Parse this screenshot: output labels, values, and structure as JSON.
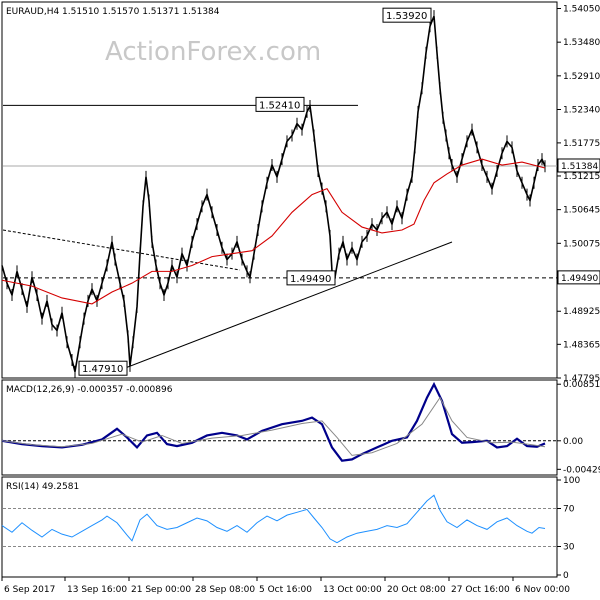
{
  "watermark": "ActionForex.com",
  "chart_data": [
    {
      "type": "candlestick",
      "symbol_header": "EURAUD,H4  1.51510 1.51570 1.51371 1.51384",
      "ylim": [
        1.47795,
        1.5416
      ],
      "y_ticks": [
        "1.54050",
        "1.53480",
        "1.52910",
        "1.52340",
        "1.51775",
        "1.51215",
        "1.50645",
        "1.50075",
        "1.49490",
        "1.48925",
        "1.48365",
        "1.47795"
      ],
      "current_price": "1.51384",
      "annotations": [
        "1.53920",
        "1.52410",
        "1.49490",
        "1.47910"
      ],
      "level_line": {
        "label": "1.49490",
        "value": 1.4949
      },
      "resistance_line": {
        "label": "1.52410",
        "value": 1.5241
      },
      "price_series": [
        [
          0,
          1.497
        ],
        [
          5,
          1.494
        ],
        [
          10,
          1.492
        ],
        [
          15,
          1.496
        ],
        [
          20,
          1.493
        ],
        [
          25,
          1.49
        ],
        [
          30,
          1.495
        ],
        [
          35,
          1.492
        ],
        [
          40,
          1.488
        ],
        [
          45,
          1.491
        ],
        [
          50,
          1.487
        ],
        [
          55,
          1.486
        ],
        [
          60,
          1.489
        ],
        [
          65,
          1.484
        ],
        [
          70,
          1.481
        ],
        [
          73,
          1.479
        ],
        [
          78,
          1.484
        ],
        [
          82,
          1.488
        ],
        [
          86,
          1.491
        ],
        [
          90,
          1.493
        ],
        [
          95,
          1.491
        ],
        [
          100,
          1.494
        ],
        [
          105,
          1.497
        ],
        [
          110,
          1.501
        ],
        [
          113,
          1.498
        ],
        [
          118,
          1.494
        ],
        [
          122,
          1.491
        ],
        [
          126,
          1.485
        ],
        [
          128,
          1.48
        ],
        [
          131,
          1.484
        ],
        [
          135,
          1.49
        ],
        [
          138,
          1.499
        ],
        [
          141,
          1.507
        ],
        [
          144,
          1.512
        ],
        [
          147,
          1.508
        ],
        [
          150,
          1.501
        ],
        [
          154,
          1.497
        ],
        [
          158,
          1.494
        ],
        [
          162,
          1.492
        ],
        [
          166,
          1.494
        ],
        [
          170,
          1.497
        ],
        [
          175,
          1.495
        ],
        [
          180,
          1.499
        ],
        [
          185,
          1.497
        ],
        [
          190,
          1.501
        ],
        [
          195,
          1.504
        ],
        [
          200,
          1.507
        ],
        [
          205,
          1.509
        ],
        [
          210,
          1.506
        ],
        [
          215,
          1.503
        ],
        [
          220,
          1.5
        ],
        [
          225,
          1.498
        ],
        [
          230,
          1.499
        ],
        [
          235,
          1.501
        ],
        [
          240,
          1.498
        ],
        [
          245,
          1.496
        ],
        [
          248,
          1.495
        ],
        [
          252,
          1.499
        ],
        [
          256,
          1.503
        ],
        [
          260,
          1.507
        ],
        [
          265,
          1.511
        ],
        [
          270,
          1.514
        ],
        [
          275,
          1.512
        ],
        [
          280,
          1.515
        ],
        [
          285,
          1.518
        ],
        [
          290,
          1.519
        ],
        [
          295,
          1.521
        ],
        [
          300,
          1.52
        ],
        [
          305,
          1.523
        ],
        [
          308,
          1.524
        ],
        [
          312,
          1.519
        ],
        [
          316,
          1.513
        ],
        [
          320,
          1.51
        ],
        [
          324,
          1.507
        ],
        [
          328,
          1.502
        ],
        [
          330,
          1.496
        ],
        [
          333,
          1.495
        ],
        [
          337,
          1.499
        ],
        [
          341,
          1.501
        ],
        [
          345,
          1.498
        ],
        [
          350,
          1.5
        ],
        [
          355,
          1.498
        ],
        [
          360,
          1.501
        ],
        [
          365,
          1.502
        ],
        [
          370,
          1.504
        ],
        [
          375,
          1.503
        ],
        [
          380,
          1.505
        ],
        [
          385,
          1.506
        ],
        [
          390,
          1.504
        ],
        [
          395,
          1.507
        ],
        [
          400,
          1.505
        ],
        [
          405,
          1.509
        ],
        [
          410,
          1.512
        ],
        [
          413,
          1.517
        ],
        [
          416,
          1.523
        ],
        [
          420,
          1.527
        ],
        [
          424,
          1.533
        ],
        [
          428,
          1.5375
        ],
        [
          432,
          1.5392
        ],
        [
          435,
          1.533
        ],
        [
          438,
          1.527
        ],
        [
          441,
          1.522
        ],
        [
          444,
          1.519
        ],
        [
          447,
          1.516
        ],
        [
          450,
          1.514
        ],
        [
          455,
          1.512
        ],
        [
          460,
          1.515
        ],
        [
          465,
          1.518
        ],
        [
          470,
          1.52
        ],
        [
          475,
          1.517
        ],
        [
          480,
          1.514
        ],
        [
          485,
          1.512
        ],
        [
          490,
          1.51
        ],
        [
          495,
          1.513
        ],
        [
          500,
          1.516
        ],
        [
          505,
          1.518
        ],
        [
          510,
          1.517
        ],
        [
          515,
          1.513
        ],
        [
          520,
          1.511
        ],
        [
          525,
          1.509
        ],
        [
          528,
          1.508
        ],
        [
          532,
          1.511
        ],
        [
          536,
          1.514
        ],
        [
          540,
          1.515
        ],
        [
          543,
          1.5138
        ]
      ],
      "ma_series": [
        [
          0,
          1.4945
        ],
        [
          30,
          1.4935
        ],
        [
          60,
          1.4915
        ],
        [
          90,
          1.4905
        ],
        [
          110,
          1.4925
        ],
        [
          130,
          1.494
        ],
        [
          150,
          1.496
        ],
        [
          170,
          1.496
        ],
        [
          190,
          1.497
        ],
        [
          210,
          1.4985
        ],
        [
          230,
          1.499
        ],
        [
          250,
          1.4995
        ],
        [
          270,
          1.502
        ],
        [
          290,
          1.506
        ],
        [
          310,
          1.509
        ],
        [
          325,
          1.51
        ],
        [
          340,
          1.506
        ],
        [
          360,
          1.5035
        ],
        [
          380,
          1.5025
        ],
        [
          400,
          1.503
        ],
        [
          412,
          1.504
        ],
        [
          422,
          1.508
        ],
        [
          432,
          1.511
        ],
        [
          445,
          1.5125
        ],
        [
          460,
          1.514
        ],
        [
          480,
          1.515
        ],
        [
          500,
          1.514
        ],
        [
          520,
          1.5145
        ],
        [
          543,
          1.5135
        ]
      ]
    },
    {
      "type": "line",
      "title": "MACD(12,26,9) -0.000357 -0.000896",
      "ylim": [
        -0.005,
        0.009
      ],
      "y_ticks": [
        "0.008517",
        "0.00",
        "-0.004296"
      ],
      "zero_line": 0,
      "series": [
        {
          "name": "MACD",
          "color": "#00008b",
          "values": [
            [
              0,
              0.0
            ],
            [
              20,
              -0.0005
            ],
            [
              40,
              -0.0008
            ],
            [
              60,
              -0.001
            ],
            [
              80,
              -0.0006
            ],
            [
              100,
              0.0002
            ],
            [
              115,
              0.0018
            ],
            [
              125,
              0.0005
            ],
            [
              135,
              -0.001
            ],
            [
              145,
              0.0008
            ],
            [
              155,
              0.0012
            ],
            [
              165,
              -0.0005
            ],
            [
              175,
              -0.0008
            ],
            [
              190,
              -0.0003
            ],
            [
              205,
              0.0008
            ],
            [
              220,
              0.0012
            ],
            [
              235,
              0.0008
            ],
            [
              245,
              0.0002
            ],
            [
              260,
              0.0015
            ],
            [
              280,
              0.0025
            ],
            [
              300,
              0.003
            ],
            [
              310,
              0.0035
            ],
            [
              320,
              0.0025
            ],
            [
              330,
              -0.001
            ],
            [
              340,
              -0.003
            ],
            [
              350,
              -0.0028
            ],
            [
              360,
              -0.002
            ],
            [
              375,
              -0.001
            ],
            [
              390,
              0.0
            ],
            [
              405,
              0.0005
            ],
            [
              415,
              0.003
            ],
            [
              425,
              0.0065
            ],
            [
              432,
              0.0085
            ],
            [
              440,
              0.006
            ],
            [
              450,
              0.001
            ],
            [
              460,
              -0.0003
            ],
            [
              470,
              -0.0002
            ],
            [
              485,
              0.0
            ],
            [
              495,
              -0.001
            ],
            [
              505,
              -0.0008
            ],
            [
              515,
              0.0003
            ],
            [
              525,
              -0.0008
            ],
            [
              535,
              -0.0009
            ],
            [
              543,
              -0.0004
            ]
          ]
        },
        {
          "name": "Signal",
          "color": "#888888",
          "values": [
            [
              0,
              0.0
            ],
            [
              30,
              -0.0006
            ],
            [
              60,
              -0.0009
            ],
            [
              90,
              -0.0004
            ],
            [
              120,
              0.001
            ],
            [
              140,
              -0.0002
            ],
            [
              160,
              0.0008
            ],
            [
              180,
              -0.0004
            ],
            [
              210,
              0.0004
            ],
            [
              240,
              0.0008
            ],
            [
              270,
              0.0016
            ],
            [
              300,
              0.0026
            ],
            [
              320,
              0.003
            ],
            [
              335,
              0.0005
            ],
            [
              350,
              -0.0022
            ],
            [
              370,
              -0.0018
            ],
            [
              395,
              -0.0004
            ],
            [
              420,
              0.0025
            ],
            [
              438,
              0.0065
            ],
            [
              450,
              0.003
            ],
            [
              465,
              0.0005
            ],
            [
              490,
              -0.0003
            ],
            [
              510,
              -0.0002
            ],
            [
              530,
              -0.0006
            ],
            [
              543,
              -0.0009
            ]
          ]
        }
      ]
    },
    {
      "type": "line",
      "title": "RSI(14) 49.2581",
      "ylim": [
        0,
        100
      ],
      "y_ticks": [
        "100",
        "70",
        "30",
        "0"
      ],
      "levels": [
        70,
        30
      ],
      "series": [
        {
          "name": "RSI",
          "color": "#1e90ff",
          "values": [
            [
              0,
              52
            ],
            [
              10,
              45
            ],
            [
              20,
              55
            ],
            [
              30,
              47
            ],
            [
              40,
              40
            ],
            [
              50,
              48
            ],
            [
              60,
              43
            ],
            [
              70,
              40
            ],
            [
              80,
              46
            ],
            [
              90,
              52
            ],
            [
              100,
              58
            ],
            [
              105,
              62
            ],
            [
              115,
              55
            ],
            [
              125,
              42
            ],
            [
              130,
              36
            ],
            [
              138,
              58
            ],
            [
              145,
              64
            ],
            [
              155,
              52
            ],
            [
              165,
              48
            ],
            [
              175,
              50
            ],
            [
              185,
              55
            ],
            [
              195,
              60
            ],
            [
              205,
              57
            ],
            [
              215,
              50
            ],
            [
              225,
              46
            ],
            [
              235,
              52
            ],
            [
              245,
              45
            ],
            [
              255,
              55
            ],
            [
              265,
              62
            ],
            [
              275,
              57
            ],
            [
              285,
              63
            ],
            [
              295,
              66
            ],
            [
              305,
              69
            ],
            [
              312,
              60
            ],
            [
              320,
              50
            ],
            [
              328,
              38
            ],
            [
              335,
              34
            ],
            [
              345,
              40
            ],
            [
              355,
              44
            ],
            [
              365,
              46
            ],
            [
              375,
              48
            ],
            [
              385,
              52
            ],
            [
              395,
              50
            ],
            [
              405,
              54
            ],
            [
              415,
              66
            ],
            [
              425,
              78
            ],
            [
              432,
              84
            ],
            [
              438,
              68
            ],
            [
              445,
              56
            ],
            [
              455,
              50
            ],
            [
              465,
              58
            ],
            [
              475,
              52
            ],
            [
              485,
              48
            ],
            [
              495,
              56
            ],
            [
              505,
              60
            ],
            [
              515,
              52
            ],
            [
              525,
              46
            ],
            [
              530,
              44
            ],
            [
              537,
              50
            ],
            [
              543,
              49
            ]
          ]
        }
      ]
    }
  ],
  "x_axis_labels": [
    "6 Sep 2017",
    "13 Sep 16:00",
    "21 Sep 00:00",
    "28 Sep 08:00",
    "5 Oct 16:00",
    "13 Oct 00:00",
    "20 Oct 08:00",
    "27 Oct 16:00",
    "6 Nov 00:00"
  ]
}
